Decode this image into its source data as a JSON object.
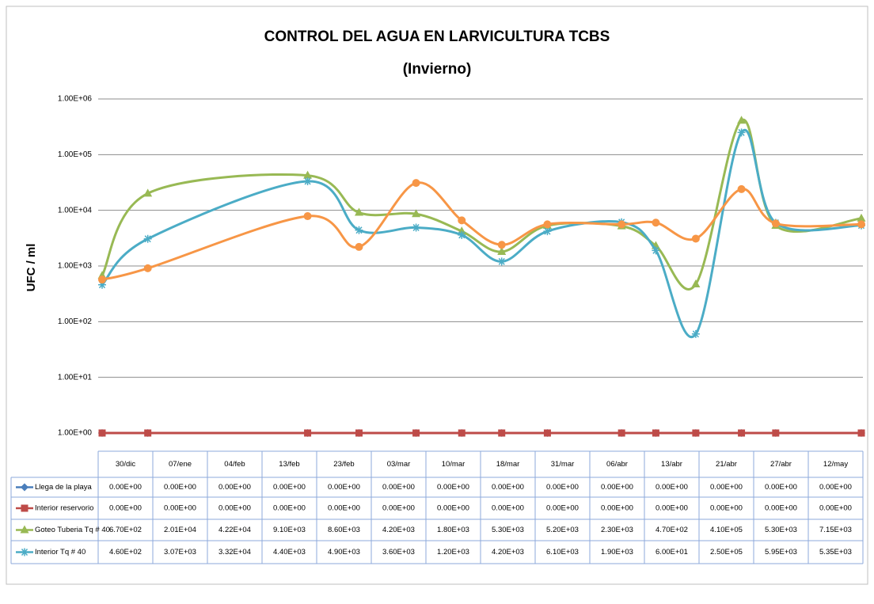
{
  "chart_data": {
    "type": "line",
    "title": "CONTROL DEL AGUA EN LARVICULTURA TCBS",
    "subtitle": "(Invierno)",
    "y_label": "UFC / ml",
    "log_scale": true,
    "grid": true,
    "categories": [
      "30/dic",
      "07/ene",
      "04/feb",
      "13/feb",
      "23/feb",
      "03/mar",
      "10/mar",
      "18/mar",
      "31/mar",
      "06/abr",
      "13/abr",
      "21/abr",
      "27/abr",
      "12/may"
    ],
    "ylim": [
      1,
      1000000
    ],
    "yticks": [
      {
        "value": 1,
        "label": "1.00E+00"
      },
      {
        "value": 10,
        "label": "1.00E+01"
      },
      {
        "value": 100,
        "label": "1.00E+02"
      },
      {
        "value": 1000,
        "label": "1.00E+03"
      },
      {
        "value": 10000,
        "label": "1.00E+04"
      },
      {
        "value": 100000,
        "label": "1.00E+05"
      },
      {
        "value": 1000000,
        "label": "1.00E+06"
      }
    ],
    "series": [
      {
        "name": "Llega de la playa",
        "color": "#4a7ebb",
        "marker": "diamond",
        "values": [
          0,
          0,
          0,
          0,
          0,
          0,
          0,
          0,
          0,
          0,
          0,
          0,
          0,
          0
        ],
        "value_labels": [
          "0.00E+00",
          "0.00E+00",
          "0.00E+00",
          "0.00E+00",
          "0.00E+00",
          "0.00E+00",
          "0.00E+00",
          "0.00E+00",
          "0.00E+00",
          "0.00E+00",
          "0.00E+00",
          "0.00E+00",
          "0.00E+00",
          "0.00E+00"
        ]
      },
      {
        "name": "Interior reservorio",
        "color": "#be4b48",
        "marker": "square",
        "values": [
          0,
          0,
          0,
          0,
          0,
          0,
          0,
          0,
          0,
          0,
          0,
          0,
          0,
          0
        ],
        "value_labels": [
          "0.00E+00",
          "0.00E+00",
          "0.00E+00",
          "0.00E+00",
          "0.00E+00",
          "0.00E+00",
          "0.00E+00",
          "0.00E+00",
          "0.00E+00",
          "0.00E+00",
          "0.00E+00",
          "0.00E+00",
          "0.00E+00",
          "0.00E+00"
        ]
      },
      {
        "name": "Goteo Tuberia Tq # 40",
        "color": "#98b954",
        "marker": "triangle",
        "values": [
          670,
          20100,
          42200,
          9100,
          8600,
          4200,
          1800,
          5300,
          5200,
          2300,
          470,
          410000,
          5300,
          7150
        ],
        "value_labels": [
          "6.70E+02",
          "2.01E+04",
          "4.22E+04",
          "9.10E+03",
          "8.60E+03",
          "4.20E+03",
          "1.80E+03",
          "5.30E+03",
          "5.20E+03",
          "2.30E+03",
          "4.70E+02",
          "4.10E+05",
          "5.30E+03",
          "7.15E+03"
        ]
      },
      {
        "name": "Interior Tq # 40",
        "color": "#4bacc6",
        "marker": "star",
        "values": [
          460,
          3070,
          33200,
          4400,
          4900,
          3600,
          1200,
          4200,
          6100,
          1900,
          60,
          250000,
          5950,
          5350
        ],
        "value_labels": [
          "4.60E+02",
          "3.07E+03",
          "3.32E+04",
          "4.40E+03",
          "4.90E+03",
          "3.60E+03",
          "1.20E+03",
          "4.20E+03",
          "6.10E+03",
          "1.90E+03",
          "6.00E+01",
          "2.50E+05",
          "5.95E+03",
          "5.35E+03"
        ]
      },
      {
        "color": "#f79646",
        "marker": "circle",
        "values": [
          570,
          910,
          7850,
          2200,
          31000,
          6600,
          2400,
          5600,
          5600,
          6000,
          3100,
          24000,
          5800,
          5600
        ]
      }
    ]
  }
}
